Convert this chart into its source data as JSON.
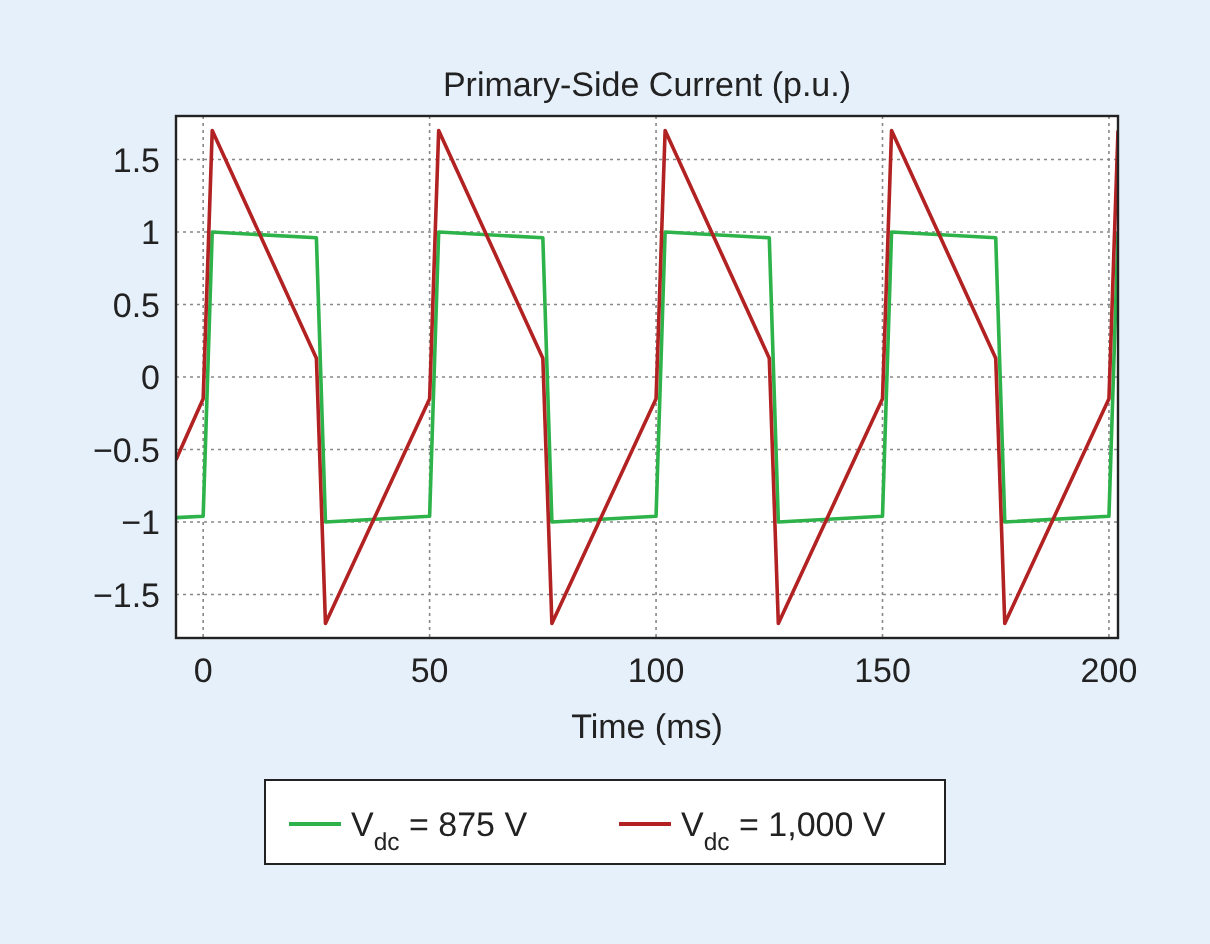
{
  "chart_data": {
    "type": "line",
    "title": "Primary-Side Current (p.u.)",
    "xlabel": "Time (ms)",
    "x": [
      -6,
      0,
      2,
      25,
      27,
      50,
      52,
      75,
      77,
      100,
      102,
      125,
      127,
      150,
      152,
      175,
      177,
      200,
      202
    ],
    "series": [
      {
        "name": "V$_{dc}$ = 875 V",
        "color": "#2db34a",
        "values": [
          -0.97,
          -0.96,
          1,
          0.96,
          -1,
          -0.96,
          1,
          0.96,
          -1,
          -0.96,
          1,
          0.96,
          -1,
          -0.96,
          1,
          0.96,
          -1,
          -0.96,
          1
        ]
      },
      {
        "name": "V$_{dc}$ = 1,000 V",
        "color": "#b22222",
        "values": [
          -0.57,
          -0.15,
          1.7,
          0.13,
          -1.7,
          -0.15,
          1.7,
          0.13,
          -1.7,
          -0.15,
          1.7,
          0.13,
          -1.7,
          -0.15,
          1.7,
          0.13,
          -1.7,
          -0.15,
          1.7
        ]
      }
    ],
    "xlim": [
      -6,
      202
    ],
    "xticks": [
      0,
      50,
      100,
      150,
      200
    ],
    "ylim": [
      -1.8,
      1.8
    ],
    "yticks": [
      {
        "value": -1.5,
        "label": "−1.5"
      },
      {
        "value": -1,
        "label": "−1"
      },
      {
        "value": -0.5,
        "label": "−0.5"
      },
      0,
      0.5,
      1,
      1.5
    ],
    "grid": true,
    "legend": "bottom",
    "marker": "none",
    "line_style": "solid"
  }
}
